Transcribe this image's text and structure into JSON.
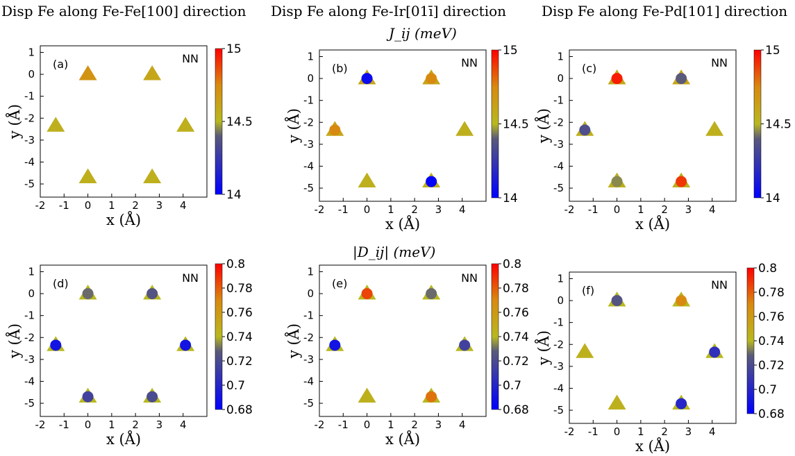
{
  "figure": {
    "column_titles": [
      "Disp Fe along Fe-Fe[100] direction",
      "Disp Fe along Fe-Ir[01ī] direction",
      "Disp Fe along Fe-Pd[101] direction"
    ],
    "row_titles": [
      "J_ij (meV)",
      "|D_ij| (meV)"
    ]
  },
  "chart_data": [
    {
      "type": "scatter",
      "panel": "(a)",
      "tag": "NN",
      "xlabel": "x (Å)",
      "ylabel": "y (Å)",
      "xlim": [
        -2,
        5
      ],
      "ylim": [
        -5.6,
        1.3
      ],
      "xticks": [
        -2,
        -1,
        0,
        1,
        2,
        3,
        4
      ],
      "yticks": [
        -5,
        -4,
        -3,
        -2,
        -1,
        0,
        1
      ],
      "colorbar": {
        "min": 14,
        "max": 15,
        "ticks": [
          "14",
          "14.5",
          "15"
        ]
      },
      "colors": {
        "low": "#0000ff",
        "mid": "#666666",
        "triangle": "#b8b820",
        "high": "#ff0000"
      },
      "triangles": [
        {
          "x": 0,
          "y": 0,
          "v": 14.7
        },
        {
          "x": 2.7,
          "y": 0,
          "v": 14.6
        },
        {
          "x": -1.35,
          "y": -2.35,
          "v": 14.55
        },
        {
          "x": 4.1,
          "y": -2.35,
          "v": 14.55
        },
        {
          "x": 0,
          "y": -4.7,
          "v": 14.55
        },
        {
          "x": 2.7,
          "y": -4.7,
          "v": 14.55
        }
      ],
      "circles": []
    },
    {
      "type": "scatter",
      "panel": "(b)",
      "tag": "NN",
      "xlabel": "x (Å)",
      "ylabel": "y (Å)",
      "xlim": [
        -2,
        5
      ],
      "ylim": [
        -5.6,
        1.3
      ],
      "xticks": [
        -2,
        -1,
        0,
        1,
        2,
        3,
        4
      ],
      "yticks": [
        -5,
        -4,
        -3,
        -2,
        -1,
        0,
        1
      ],
      "colorbar": {
        "min": 14,
        "max": 15,
        "ticks": [
          "14",
          "14.5",
          "15"
        ]
      },
      "triangles": [
        {
          "x": 0,
          "y": 0,
          "v": 14.6
        },
        {
          "x": 2.7,
          "y": 0,
          "v": 14.6
        },
        {
          "x": -1.35,
          "y": -2.35,
          "v": 14.6
        },
        {
          "x": 4.1,
          "y": -2.35,
          "v": 14.55
        },
        {
          "x": 0,
          "y": -4.7,
          "v": 14.55
        },
        {
          "x": 2.7,
          "y": -4.7,
          "v": 14.55
        }
      ],
      "circles": [
        {
          "x": 0,
          "y": 0,
          "v": 14.05
        },
        {
          "x": 2.7,
          "y": 0,
          "v": 14.75
        },
        {
          "x": -1.35,
          "y": -2.35,
          "v": 14.75
        },
        {
          "x": 2.7,
          "y": -4.7,
          "v": 14.02
        }
      ]
    },
    {
      "type": "scatter",
      "panel": "(c)",
      "tag": "NN",
      "xlabel": "x (Å)",
      "ylabel": "y (Å)",
      "xlim": [
        -2,
        5
      ],
      "ylim": [
        -5.6,
        1.3
      ],
      "xticks": [
        -2,
        -1,
        0,
        1,
        2,
        3,
        4
      ],
      "yticks": [
        -5,
        -4,
        -3,
        -2,
        -1,
        0,
        1
      ],
      "colorbar": {
        "min": 14,
        "max": 15,
        "ticks": [
          "14",
          "14.5",
          "15"
        ]
      },
      "triangles": [
        {
          "x": 0,
          "y": 0,
          "v": 14.6
        },
        {
          "x": 2.7,
          "y": 0,
          "v": 14.6
        },
        {
          "x": -1.35,
          "y": -2.35,
          "v": 14.55
        },
        {
          "x": 4.1,
          "y": -2.35,
          "v": 14.55
        },
        {
          "x": 0,
          "y": -4.7,
          "v": 14.55
        },
        {
          "x": 2.7,
          "y": -4.7,
          "v": 14.55
        }
      ],
      "circles": [
        {
          "x": 0,
          "y": 0,
          "v": 14.95
        },
        {
          "x": 2.7,
          "y": 0,
          "v": 14.4
        },
        {
          "x": -1.35,
          "y": -2.35,
          "v": 14.35
        },
        {
          "x": 0,
          "y": -4.7,
          "v": 14.45
        },
        {
          "x": 2.7,
          "y": -4.7,
          "v": 14.9
        }
      ]
    },
    {
      "type": "scatter",
      "panel": "(d)",
      "tag": "NN",
      "xlabel": "x (Å)",
      "ylabel": "y (Å)",
      "xlim": [
        -2,
        5
      ],
      "ylim": [
        -5.6,
        1.3
      ],
      "xticks": [
        -2,
        -1,
        0,
        1,
        2,
        3,
        4
      ],
      "yticks": [
        -5,
        -4,
        -3,
        -2,
        -1,
        0,
        1
      ],
      "colorbar": {
        "min": 0.68,
        "max": 0.8,
        "ticks": [
          "0.68",
          "0.7",
          "0.72",
          "0.74",
          "0.76",
          "0.78",
          "0.8"
        ]
      },
      "triangles": [
        {
          "x": 0,
          "y": 0,
          "v": 0.74
        },
        {
          "x": 2.7,
          "y": 0,
          "v": 0.74
        },
        {
          "x": -1.35,
          "y": -2.35,
          "v": 0.74
        },
        {
          "x": 4.1,
          "y": -2.35,
          "v": 0.74
        },
        {
          "x": 0,
          "y": -4.7,
          "v": 0.74
        },
        {
          "x": 2.7,
          "y": -4.7,
          "v": 0.74
        }
      ],
      "circles": [
        {
          "x": 0,
          "y": 0,
          "v": 0.73
        },
        {
          "x": 2.7,
          "y": 0,
          "v": 0.725
        },
        {
          "x": -1.35,
          "y": -2.35,
          "v": 0.69
        },
        {
          "x": 4.1,
          "y": -2.35,
          "v": 0.69
        },
        {
          "x": 0,
          "y": -4.7,
          "v": 0.715
        },
        {
          "x": 2.7,
          "y": -4.7,
          "v": 0.72
        }
      ]
    },
    {
      "type": "scatter",
      "panel": "(e)",
      "tag": "NN",
      "xlabel": "x (Å)",
      "ylabel": "y (Å)",
      "xlim": [
        -2,
        5
      ],
      "ylim": [
        -5.6,
        1.3
      ],
      "xticks": [
        -2,
        -1,
        0,
        1,
        2,
        3,
        4
      ],
      "yticks": [
        -5,
        -4,
        -3,
        -2,
        -1,
        0,
        1
      ],
      "colorbar": {
        "min": 0.68,
        "max": 0.8,
        "ticks": [
          "0.68",
          "0.7",
          "0.72",
          "0.74",
          "0.76",
          "0.78",
          "0.8"
        ]
      },
      "triangles": [
        {
          "x": 0,
          "y": 0,
          "v": 0.74
        },
        {
          "x": 2.7,
          "y": 0,
          "v": 0.74
        },
        {
          "x": -1.35,
          "y": -2.35,
          "v": 0.74
        },
        {
          "x": 4.1,
          "y": -2.35,
          "v": 0.74
        },
        {
          "x": 0,
          "y": -4.7,
          "v": 0.745
        },
        {
          "x": 2.7,
          "y": -4.7,
          "v": 0.74
        }
      ],
      "circles": [
        {
          "x": 0,
          "y": 0,
          "v": 0.785
        },
        {
          "x": 2.7,
          "y": 0,
          "v": 0.73
        },
        {
          "x": -1.35,
          "y": -2.35,
          "v": 0.69
        },
        {
          "x": 4.1,
          "y": -2.35,
          "v": 0.715
        },
        {
          "x": 2.7,
          "y": -4.7,
          "v": 0.775
        }
      ]
    },
    {
      "type": "scatter",
      "panel": "(f)",
      "tag": "NN",
      "xlabel": "x (Å)",
      "ylabel": "y (Å)",
      "xlim": [
        -2,
        5
      ],
      "ylim": [
        -5.6,
        1.3
      ],
      "xticks": [
        -2,
        -1,
        0,
        1,
        2,
        3,
        4
      ],
      "yticks": [
        -5,
        -4,
        -3,
        -2,
        -1,
        0,
        1
      ],
      "colorbar": {
        "min": 0.68,
        "max": 0.8,
        "ticks": [
          "0.68",
          "0.7",
          "0.72",
          "0.74",
          "0.76",
          "0.78",
          "0.8"
        ]
      },
      "triangles": [
        {
          "x": 0,
          "y": 0,
          "v": 0.74
        },
        {
          "x": 2.7,
          "y": 0,
          "v": 0.74
        },
        {
          "x": -1.35,
          "y": -2.35,
          "v": 0.745
        },
        {
          "x": 4.1,
          "y": -2.35,
          "v": 0.74
        },
        {
          "x": 0,
          "y": -4.7,
          "v": 0.745
        },
        {
          "x": 2.7,
          "y": -4.7,
          "v": 0.74
        }
      ],
      "circles": [
        {
          "x": 0,
          "y": 0,
          "v": 0.725
        },
        {
          "x": 2.7,
          "y": 0,
          "v": 0.77
        },
        {
          "x": 4.1,
          "y": -2.35,
          "v": 0.705
        },
        {
          "x": 2.7,
          "y": -4.7,
          "v": 0.7
        }
      ]
    }
  ]
}
